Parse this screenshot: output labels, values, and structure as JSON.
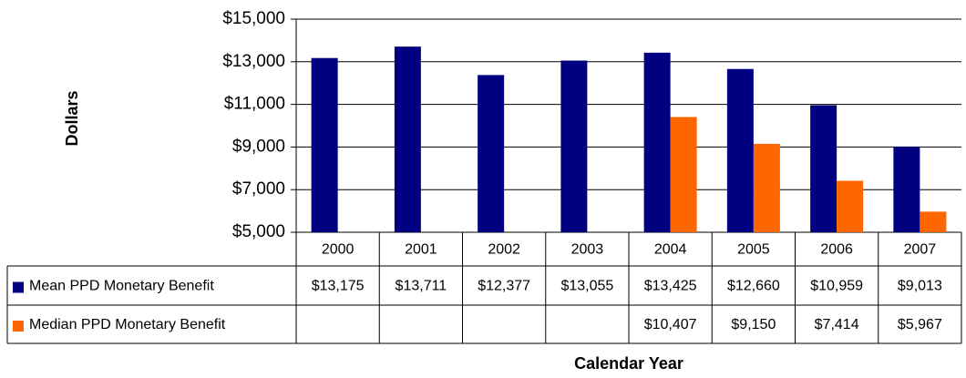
{
  "chart_data": {
    "type": "bar",
    "categories": [
      "2000",
      "2001",
      "2002",
      "2003",
      "2004",
      "2005",
      "2006",
      "2007"
    ],
    "series": [
      {
        "name": "Mean PPD Monetary Benefit",
        "color": "#000080",
        "values": [
          13175,
          13711,
          12377,
          13055,
          13425,
          12660,
          10959,
          9013
        ],
        "value_labels": [
          "$13,175",
          "$13,711",
          "$12,377",
          "$13,055",
          "$13,425",
          "$12,660",
          "$10,959",
          "$9,013"
        ]
      },
      {
        "name": "Median PPD Monetary Benefit",
        "color": "#FF6600",
        "values": [
          null,
          null,
          null,
          null,
          10407,
          9150,
          7414,
          5967
        ],
        "value_labels": [
          null,
          null,
          null,
          null,
          "$10,407",
          "$9,150",
          "$7,414",
          "$5,967"
        ]
      }
    ],
    "y_label": "Dollars",
    "x_label": "Calendar Year",
    "ylim": [
      5000,
      15000
    ],
    "yticks": [
      {
        "value": 5000,
        "label": "$5,000"
      },
      {
        "value": 7000,
        "label": "$7,000"
      },
      {
        "value": 9000,
        "label": "$9,000"
      },
      {
        "value": 11000,
        "label": "$11,000"
      },
      {
        "value": 13000,
        "label": "$13,000"
      },
      {
        "value": 15000,
        "label": "$15,000"
      }
    ],
    "grid": true
  }
}
